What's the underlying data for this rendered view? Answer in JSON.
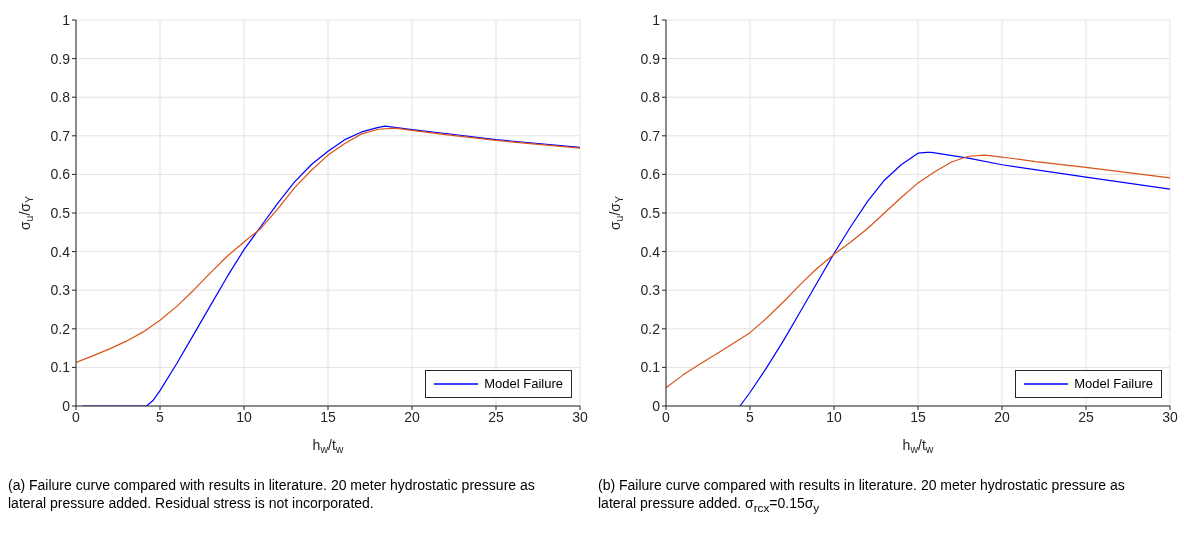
{
  "chart_data": [
    {
      "type": "line",
      "xlabel": "h$_{w}$/t$_{w}$",
      "ylabel": "σ$_{u}$/σ$_{Y}$",
      "xlim": [
        0,
        30
      ],
      "xticks": [
        0,
        5,
        10,
        15,
        20,
        25,
        30
      ],
      "ylim": [
        0,
        1
      ],
      "yticks": [
        0,
        0.1,
        0.2,
        0.3,
        0.4,
        0.5,
        0.6,
        0.7,
        0.8,
        0.9,
        1
      ],
      "grid": true,
      "legend": "bottom right",
      "marker": "none",
      "line_style": "solid",
      "annotations": [
        "(a) Failure curve compared with results in literature. 20 meter hydrostatic pressure as lateral pressure added. Residual stress is not incorporated."
      ],
      "series": [
        {
          "name": "Model Failure",
          "color": "#0000ff",
          "x": [
            0.4,
            2,
            4.2,
            4.6,
            5,
            6,
            7,
            8,
            9,
            10,
            11,
            12,
            13,
            14,
            15,
            16,
            17,
            18,
            18.4,
            20,
            22,
            25,
            30
          ],
          "values": [
            0,
            0,
            0,
            0.015,
            0.04,
            0.11,
            0.185,
            0.26,
            0.335,
            0.405,
            0.465,
            0.525,
            0.58,
            0.625,
            0.66,
            0.69,
            0.71,
            0.722,
            0.725,
            0.716,
            0.706,
            0.69,
            0.67
          ]
        },
        {
          "color": "#d95319",
          "x": [
            0,
            1,
            2,
            3,
            4,
            5,
            6,
            7,
            8,
            9,
            10,
            11,
            12,
            13,
            14,
            15,
            16,
            17,
            18,
            19,
            20,
            22,
            25,
            30
          ],
          "values": [
            0.113,
            0.13,
            0.148,
            0.168,
            0.192,
            0.222,
            0.258,
            0.3,
            0.345,
            0.388,
            0.425,
            0.46,
            0.51,
            0.565,
            0.61,
            0.65,
            0.68,
            0.705,
            0.717,
            0.72,
            0.714,
            0.703,
            0.688,
            0.668
          ]
        }
      ]
    },
    {
      "type": "line",
      "xlabel": "h$_{w}$/t$_{w}$",
      "ylabel": "σ$_{u}$/σ$_{Y}$",
      "xlim": [
        0,
        30
      ],
      "xticks": [
        0,
        5,
        10,
        15,
        20,
        25,
        30
      ],
      "ylim": [
        0,
        1
      ],
      "yticks": [
        0,
        0.1,
        0.2,
        0.3,
        0.4,
        0.5,
        0.6,
        0.7,
        0.8,
        0.9,
        1
      ],
      "grid": true,
      "legend": "bottom right",
      "marker": "none",
      "line_style": "solid",
      "annotations": [
        "(b) Failure curve compared with results in literature. 20 meter hydrostatic pressure as lateral pressure added. σ$_{rcx}$=0.15σ$_{y}$"
      ],
      "series": [
        {
          "name": "Model Failure",
          "color": "#0000ff",
          "x": [
            4.4,
            5,
            6,
            7,
            8,
            9,
            10,
            11,
            12,
            13,
            14,
            15,
            15.5,
            15.8,
            18,
            20,
            25,
            30
          ],
          "values": [
            0,
            0.035,
            0.1,
            0.17,
            0.245,
            0.32,
            0.395,
            0.465,
            0.53,
            0.585,
            0.625,
            0.655,
            0.657,
            0.657,
            0.642,
            0.625,
            0.593,
            0.562
          ]
        },
        {
          "color": "#d95319",
          "x": [
            0,
            1,
            2,
            3,
            4,
            5,
            6,
            7,
            8,
            9,
            10,
            11,
            12,
            13,
            14,
            15,
            16,
            17,
            18,
            19,
            20,
            22,
            25,
            30
          ],
          "values": [
            0.047,
            0.08,
            0.108,
            0.135,
            0.162,
            0.19,
            0.228,
            0.27,
            0.315,
            0.357,
            0.393,
            0.425,
            0.46,
            0.5,
            0.54,
            0.578,
            0.607,
            0.632,
            0.647,
            0.65,
            0.645,
            0.633,
            0.618,
            0.591
          ]
        }
      ]
    }
  ]
}
